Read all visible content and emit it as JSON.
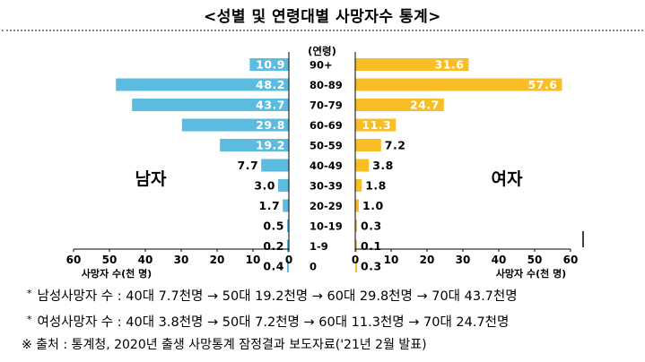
{
  "title": "<성별 및 연령대별 사망자수 통계>",
  "chart_data": {
    "type": "bar",
    "orientation": "horizontal-butterfly",
    "age_header": "(연령)",
    "categories": [
      "90+",
      "80-89",
      "70-79",
      "60-69",
      "50-59",
      "40-49",
      "30-39",
      "20-29",
      "10-19",
      "1-9",
      "0"
    ],
    "series": [
      {
        "name": "남자",
        "color": "#5bbcdf",
        "values": [
          10.9,
          48.2,
          43.7,
          29.8,
          19.2,
          7.7,
          3.0,
          1.7,
          0.5,
          0.2,
          0.4
        ],
        "labels": [
          "10.9",
          "48.2",
          "43.7",
          "29.8",
          "19.2",
          "7.7",
          "3.0",
          "1.7",
          "0.5",
          "0.2",
          "0.4"
        ]
      },
      {
        "name": "여자",
        "color": "#f9bd25",
        "values": [
          31.6,
          57.6,
          24.7,
          11.3,
          7.2,
          3.8,
          1.8,
          1.0,
          0.3,
          0.1,
          0.3
        ],
        "labels": [
          "31.6",
          "57.6",
          "24.7",
          "11.3",
          "7.2",
          "3.8",
          "1.8",
          "1.0",
          "0.3",
          "0.1",
          "0.3"
        ]
      }
    ],
    "left_axis": {
      "ticks": [
        "60",
        "50",
        "40",
        "30",
        "20",
        "10",
        "0"
      ],
      "label": "사망자 수(천 명)",
      "range": [
        0,
        60
      ]
    },
    "right_axis": {
      "ticks": [
        "0",
        "10",
        "20",
        "30",
        "40",
        "50",
        "60"
      ],
      "label": "사망자 수(천 명)",
      "range": [
        0,
        60
      ]
    },
    "grid": false
  },
  "notes": {
    "bullet": "*",
    "male": "남성사망자 수 : 40대 7.7천명 → 50대 19.2천명 → 60대 29.8천명 → 70대 43.7천명",
    "female": "여성사망자 수 : 40대 3.8천명 → 50대 7.2천명  → 60대 11.3천명 → 70대 24.7천명",
    "source": "※ 출처 : 통계청, 2020년 출생 사망통계 잠정결과 보도자료('21년 2월 발표)"
  }
}
